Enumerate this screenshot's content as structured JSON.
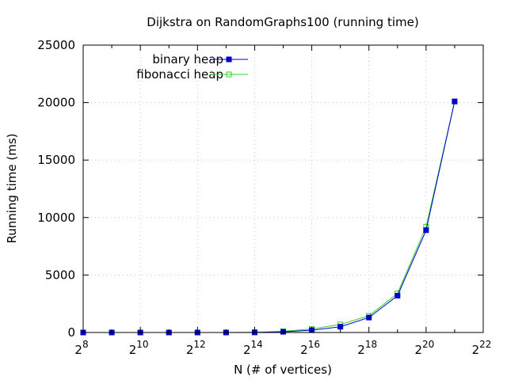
{
  "chart_data": {
    "type": "line",
    "title": "Dijkstra on RandomGraphs100 (running time)",
    "xlabel": "N (# of vertices)",
    "ylabel": "Running time (ms)",
    "x_scale": "log2",
    "x_exponents": [
      8,
      9,
      10,
      11,
      12,
      13,
      14,
      15,
      16,
      17,
      18,
      19,
      20,
      21
    ],
    "xlim_exponent": [
      8,
      22
    ],
    "x_tick_exponents": [
      8,
      10,
      12,
      14,
      16,
      18,
      20,
      22
    ],
    "x_tick_base": "2",
    "ylim": [
      0,
      25000
    ],
    "y_ticks": [
      0,
      5000,
      10000,
      15000,
      20000,
      25000
    ],
    "grid": true,
    "legend_position": "top-left",
    "series": [
      {
        "name": "binary heap",
        "color": "#0000cc",
        "marker": "filled-square",
        "values": [
          0,
          0,
          0,
          0,
          0,
          0,
          10,
          60,
          200,
          500,
          1300,
          3200,
          8900,
          20100
        ]
      },
      {
        "name": "fibonacci heap",
        "color": "#33cc33",
        "marker": "open-square",
        "values": [
          0,
          0,
          0,
          0,
          0,
          0,
          20,
          100,
          300,
          700,
          1450,
          3400,
          9200,
          20100
        ]
      }
    ]
  }
}
